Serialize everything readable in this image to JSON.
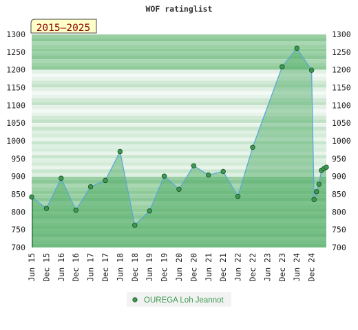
{
  "chart_data": {
    "type": "area",
    "title": "WOF ratinglist",
    "badge": "2015–2025",
    "ylim": [
      700,
      1300
    ],
    "y_ticks": [
      700,
      750,
      800,
      850,
      900,
      950,
      1000,
      1050,
      1100,
      1150,
      1200,
      1250,
      1300
    ],
    "x_ticks": [
      "Jun 15",
      "Dec 15",
      "Jun 16",
      "Dec 16",
      "Jun 17",
      "Dec 17",
      "Jun 18",
      "Dec 18",
      "Jun 19",
      "Dec 19",
      "Jun 20",
      "Dec 20",
      "Jun 21",
      "Dec 21",
      "Jun 22",
      "Dec 22",
      "Jun 23",
      "Dec 23",
      "Jun 24",
      "Dec 24"
    ],
    "grid": true,
    "legend_position": "bottom",
    "series": [
      {
        "name": "OUREGA Loh Jeannot",
        "color": "#3a9a50",
        "points": [
          {
            "x": "2015-06",
            "y": 842
          },
          {
            "x": "2015-12",
            "y": 810
          },
          {
            "x": "2016-06",
            "y": 895
          },
          {
            "x": "2016-12",
            "y": 805
          },
          {
            "x": "2017-06",
            "y": 871
          },
          {
            "x": "2017-12",
            "y": 889
          },
          {
            "x": "2018-06",
            "y": 970
          },
          {
            "x": "2018-12",
            "y": 763
          },
          {
            "x": "2019-06",
            "y": 803
          },
          {
            "x": "2019-12",
            "y": 901
          },
          {
            "x": "2020-06",
            "y": 864
          },
          {
            "x": "2020-12",
            "y": 930
          },
          {
            "x": "2021-06",
            "y": 904
          },
          {
            "x": "2021-12",
            "y": 914
          },
          {
            "x": "2022-06",
            "y": 844
          },
          {
            "x": "2022-12",
            "y": 982
          },
          {
            "x": "2023-12",
            "y": 1209
          },
          {
            "x": "2024-06",
            "y": 1261
          },
          {
            "x": "2024-12",
            "y": 1199
          },
          {
            "x": "2025-01",
            "y": 835
          },
          {
            "x": "2025-02",
            "y": 857
          },
          {
            "x": "2025-03",
            "y": 878
          },
          {
            "x": "2025-04",
            "y": 917
          },
          {
            "x": "2025-05",
            "y": 922
          },
          {
            "x": "2025-06",
            "y": 926
          }
        ]
      }
    ]
  }
}
